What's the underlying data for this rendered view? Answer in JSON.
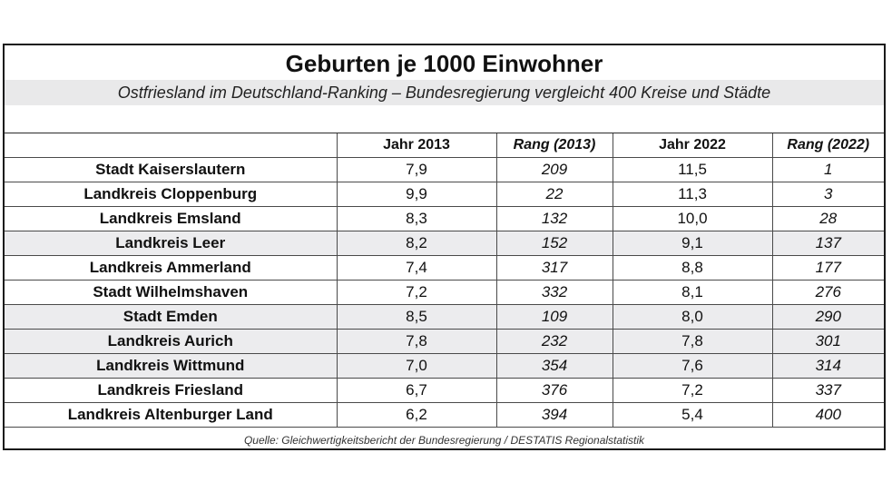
{
  "title": "Geburten je 1000 Einwohner",
  "subtitle": "Ostfriesland im Deutschland-Ranking – Bundesregierung vergleicht 400 Kreise und Städte",
  "table": {
    "headers": [
      "",
      "Jahr 2013",
      "Rang (2013)",
      "Jahr 2022",
      "Rang (2022)"
    ],
    "rows": [
      {
        "name": "Stadt Kaiserslautern",
        "y2013": "7,9",
        "r2013": "209",
        "y2022": "11,5",
        "r2022": "1"
      },
      {
        "name": "Landkreis Cloppenburg",
        "y2013": "9,9",
        "r2013": "22",
        "y2022": "11,3",
        "r2022": "3"
      },
      {
        "name": "Landkreis Emsland",
        "y2013": "8,3",
        "r2013": "132",
        "y2022": "10,0",
        "r2022": "28"
      },
      {
        "name": "Landkreis Leer",
        "y2013": "8,2",
        "r2013": "152",
        "y2022": "9,1",
        "r2022": "137"
      },
      {
        "name": "Landkreis Ammerland",
        "y2013": "7,4",
        "r2013": "317",
        "y2022": "8,8",
        "r2022": "177"
      },
      {
        "name": "Stadt Wilhelmshaven",
        "y2013": "7,2",
        "r2013": "332",
        "y2022": "8,1",
        "r2022": "276"
      },
      {
        "name": "Stadt Emden",
        "y2013": "8,5",
        "r2013": "109",
        "y2022": "8,0",
        "r2022": "290"
      },
      {
        "name": "Landkreis Aurich",
        "y2013": "7,8",
        "r2013": "232",
        "y2022": "7,8",
        "r2022": "301"
      },
      {
        "name": "Landkreis Wittmund",
        "y2013": "7,0",
        "r2013": "354",
        "y2022": "7,6",
        "r2022": "314"
      },
      {
        "name": "Landkreis Friesland",
        "y2013": "6,7",
        "r2013": "376",
        "y2022": "7,2",
        "r2022": "337"
      },
      {
        "name": "Landkreis Altenburger Land",
        "y2013": "6,2",
        "r2013": "394",
        "y2022": "5,4",
        "r2022": "400"
      }
    ]
  },
  "source": "Quelle: Gleichwertigkeitsbericht der Bundesregierung / DESTATIS Regionalstatistik",
  "colors": {
    "row_shade": "#ececee",
    "subtitle_band": "#e9e9ea",
    "border": "#1a1a1a"
  }
}
